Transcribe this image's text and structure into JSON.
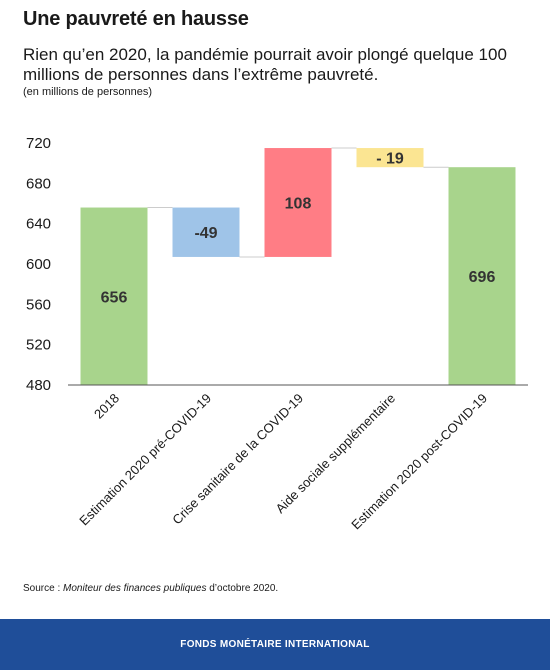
{
  "header": {
    "title": "Une pauvreté en hausse",
    "subtitle": "Rien qu’en 2020, la pandémie pourrait avoir plongé quelque 100 millions de personnes dans l’extrême pauvreté.",
    "unit": "(en millions de personnes)"
  },
  "source": {
    "prefix": "Source : ",
    "publication": "Moniteur des finances publiques",
    "suffix": " d’octobre 2020."
  },
  "footer": {
    "brand": "FONDS MONÉTAIRE INTERNATIONAL"
  },
  "colors": {
    "total": "#a8d48c",
    "decrease": "#9fc4e8",
    "increase": "#ff7d85",
    "small_decrease": "#fbe592",
    "connector": "#cccccc",
    "axis": "#555555"
  },
  "chart_data": {
    "type": "waterfall",
    "title": "",
    "xlabel": "",
    "ylabel": "",
    "ylim": [
      480,
      720
    ],
    "yticks": [
      480,
      520,
      560,
      600,
      640,
      680,
      720
    ],
    "grid": false,
    "categories": [
      "2018",
      "Estimation 2020 pré-COVID-19",
      "Crise sanitaire de la COVID-19",
      "Aide sociale supplémentaire",
      "Estimation 2020 post-COVID-19"
    ],
    "bars": [
      {
        "category": "2018",
        "kind": "total",
        "start": 480,
        "end": 656,
        "label": "656"
      },
      {
        "category": "Estimation 2020 pré-COVID-19",
        "kind": "decrease",
        "start": 656,
        "end": 607,
        "label": "-49"
      },
      {
        "category": "Crise sanitaire de la COVID-19",
        "kind": "increase",
        "start": 607,
        "end": 715,
        "label": "108"
      },
      {
        "category": "Aide sociale supplémentaire",
        "kind": "small_decrease",
        "start": 715,
        "end": 696,
        "label": "- 19"
      },
      {
        "category": "Estimation 2020 post-COVID-19",
        "kind": "total",
        "start": 480,
        "end": 696,
        "label": "696"
      }
    ]
  }
}
